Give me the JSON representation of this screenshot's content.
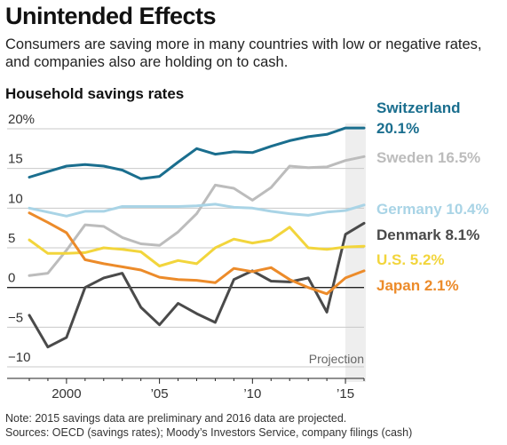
{
  "header": {
    "title": "Unintended Effects",
    "subtitle": "Consumers are saving more in many countries with low or negative rates, and companies also are holding on to cash."
  },
  "chart_data": {
    "type": "line",
    "title": "Household savings rates",
    "xlabel": "",
    "ylabel": "",
    "x": [
      1998,
      1999,
      2000,
      2001,
      2002,
      2003,
      2004,
      2005,
      2006,
      2007,
      2008,
      2009,
      2010,
      2011,
      2012,
      2013,
      2014,
      2015,
      2016
    ],
    "xlim": [
      1998,
      2016
    ],
    "ylim": [
      -10,
      20
    ],
    "y_ticks": [
      {
        "value": 20,
        "label": "20%"
      },
      {
        "value": 15,
        "label": "15"
      },
      {
        "value": 10,
        "label": "10"
      },
      {
        "value": 5,
        "label": "5"
      },
      {
        "value": 0,
        "label": "0"
      },
      {
        "value": -5,
        "label": "−5"
      },
      {
        "value": -10,
        "label": "−10"
      }
    ],
    "x_ticks": [
      {
        "value": 2000,
        "label": "2000"
      },
      {
        "value": 2005,
        "label": "’05"
      },
      {
        "value": 2010,
        "label": "’10"
      },
      {
        "value": 2015,
        "label": "’15"
      }
    ],
    "projection": {
      "label": "Projection",
      "from": 2015,
      "to": 2016
    },
    "grid": true,
    "series": [
      {
        "name": "Switzerland",
        "value_label": "20.1%",
        "color": "#1a6e8e",
        "values": [
          13.9,
          14.6,
          15.3,
          15.5,
          15.3,
          14.8,
          13.7,
          14.0,
          15.8,
          17.5,
          16.8,
          17.1,
          17.0,
          17.8,
          18.5,
          19.0,
          19.3,
          20.1,
          20.1
        ]
      },
      {
        "name": "Sweden",
        "value_label": "16.5%",
        "color": "#bcbcbc",
        "values": [
          1.5,
          1.8,
          4.7,
          7.9,
          7.7,
          6.3,
          5.5,
          5.3,
          7.0,
          9.3,
          12.9,
          12.5,
          11.0,
          12.6,
          15.3,
          15.1,
          15.2,
          16.0,
          16.5
        ]
      },
      {
        "name": "Germany",
        "value_label": "10.4%",
        "color": "#a9d4e6",
        "values": [
          10.0,
          9.5,
          9.0,
          9.6,
          9.6,
          10.2,
          10.2,
          10.2,
          10.2,
          10.3,
          10.5,
          10.1,
          10.0,
          9.6,
          9.3,
          9.1,
          9.5,
          9.7,
          10.4
        ]
      },
      {
        "name": "Denmark",
        "value_label": "8.1%",
        "color": "#4a4a4a",
        "values": [
          -3.5,
          -7.5,
          -6.3,
          0.0,
          1.2,
          1.8,
          -2.5,
          -4.7,
          -2.0,
          -3.3,
          -4.4,
          1.0,
          2.1,
          0.8,
          0.7,
          1.2,
          -3.1,
          6.7,
          8.1
        ]
      },
      {
        "name": "U.S.",
        "value_label": "5.2%",
        "color": "#f2d53c",
        "values": [
          6.0,
          4.3,
          4.3,
          4.4,
          5.0,
          4.8,
          4.5,
          2.7,
          3.4,
          3.0,
          5.0,
          6.1,
          5.6,
          6.0,
          7.6,
          5.0,
          4.8,
          5.1,
          5.2
        ]
      },
      {
        "name": "Japan",
        "value_label": "2.1%",
        "color": "#ec8b2a",
        "values": [
          9.4,
          8.2,
          6.9,
          3.5,
          3.0,
          2.6,
          2.2,
          1.3,
          1.0,
          0.9,
          0.6,
          2.4,
          2.0,
          2.5,
          1.0,
          0.0,
          -0.8,
          1.2,
          2.1
        ]
      }
    ]
  },
  "footer": {
    "note": "Note: 2015 savings data are preliminary and 2016 data are projected.",
    "sources": "Sources: OECD (savings rates); Moody’s Investors Service, company filings (cash)"
  }
}
